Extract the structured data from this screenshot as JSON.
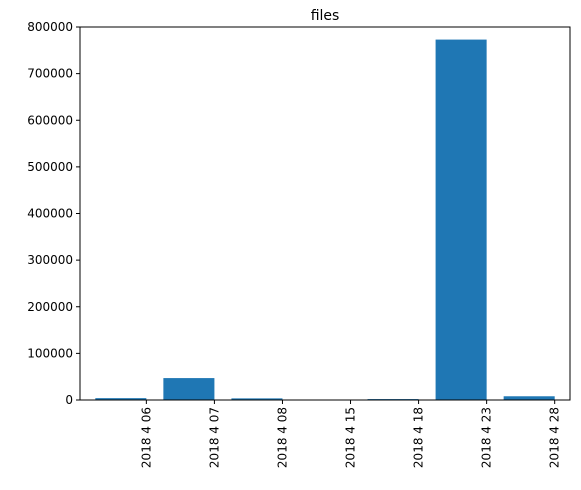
{
  "chart_data": {
    "type": "bar",
    "title": "files",
    "xlabel": "",
    "ylabel": "",
    "categories": [
      "2018 4 06",
      "2018 4 07",
      "2018 4 08",
      "2018 4 15",
      "2018 4 18",
      "2018 4 23",
      "2018 4 28"
    ],
    "values": [
      4000,
      47000,
      3500,
      0,
      2000,
      773000,
      8000
    ],
    "ylim": [
      0,
      800000
    ],
    "yticks": [
      0,
      100000,
      200000,
      300000,
      400000,
      500000,
      600000,
      700000,
      800000
    ],
    "ytick_labels": [
      "0",
      "100000",
      "200000",
      "300000",
      "400000",
      "500000",
      "600000",
      "700000",
      "800000"
    ],
    "grid": false,
    "bar_color": "#1f77b4",
    "xtick_rotation": "vertical"
  }
}
